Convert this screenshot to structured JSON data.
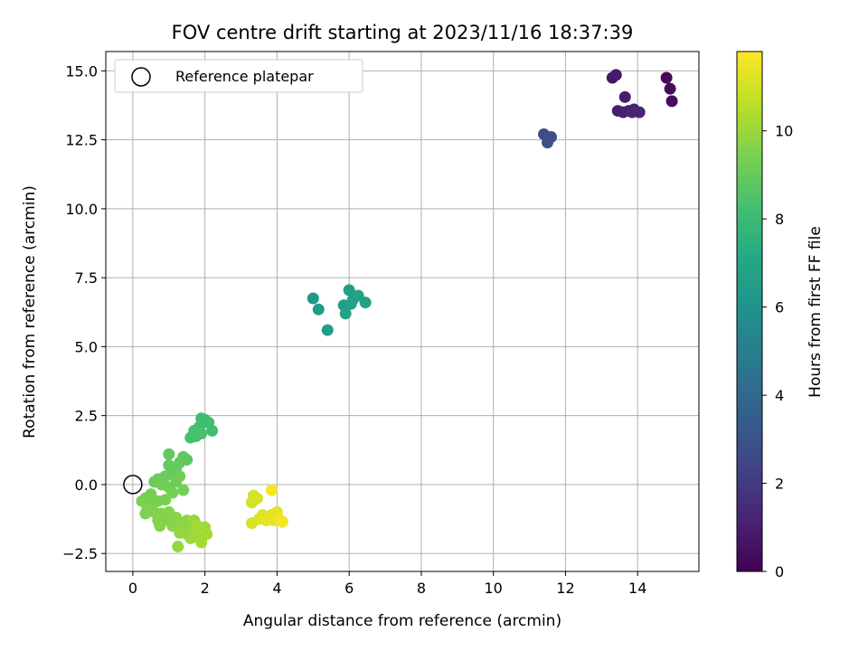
{
  "chart_data": {
    "type": "scatter",
    "title": "FOV centre drift starting at 2023/11/16 18:37:39",
    "xlabel": "Angular distance from reference (arcmin)",
    "ylabel": "Rotation from reference (arcmin)",
    "xlim": [
      -0.75,
      15.7
    ],
    "ylim": [
      -3.15,
      15.7
    ],
    "xticks": [
      0,
      2,
      4,
      6,
      8,
      10,
      12,
      14
    ],
    "yticks": [
      -2.5,
      0.0,
      2.5,
      5.0,
      7.5,
      10.0,
      12.5,
      15.0
    ],
    "ytick_labels": [
      "−2.5",
      "0.0",
      "2.5",
      "5.0",
      "7.5",
      "10.0",
      "12.5",
      "15.0"
    ],
    "grid": true,
    "legend": {
      "placement": "upper-left",
      "entries": [
        "Reference platepar"
      ]
    },
    "reference_point": {
      "x": 0,
      "y": 0
    },
    "colorbar": {
      "label": "Hours from first FF file",
      "colormap": "viridis",
      "range": [
        0,
        11.8
      ],
      "ticks": [
        0,
        2,
        4,
        6,
        8,
        10
      ]
    },
    "points": [
      {
        "x": 14.8,
        "y": 14.75,
        "c": 0.2
      },
      {
        "x": 14.9,
        "y": 14.35,
        "c": 0.3
      },
      {
        "x": 14.95,
        "y": 13.9,
        "c": 0.4
      },
      {
        "x": 13.3,
        "y": 14.75,
        "c": 0.7
      },
      {
        "x": 13.4,
        "y": 14.85,
        "c": 0.8
      },
      {
        "x": 13.65,
        "y": 14.05,
        "c": 0.9
      },
      {
        "x": 13.45,
        "y": 13.55,
        "c": 1.0
      },
      {
        "x": 13.6,
        "y": 13.5,
        "c": 1.0
      },
      {
        "x": 13.75,
        "y": 13.55,
        "c": 1.1
      },
      {
        "x": 13.9,
        "y": 13.6,
        "c": 1.1
      },
      {
        "x": 14.05,
        "y": 13.5,
        "c": 1.2
      },
      {
        "x": 13.85,
        "y": 13.5,
        "c": 1.2
      },
      {
        "x": 11.4,
        "y": 12.7,
        "c": 2.7
      },
      {
        "x": 11.6,
        "y": 12.6,
        "c": 2.8
      },
      {
        "x": 11.5,
        "y": 12.4,
        "c": 2.9
      },
      {
        "x": 5.0,
        "y": 6.75,
        "c": 6.3
      },
      {
        "x": 5.15,
        "y": 6.35,
        "c": 6.4
      },
      {
        "x": 5.4,
        "y": 5.6,
        "c": 6.5
      },
      {
        "x": 5.85,
        "y": 6.5,
        "c": 6.5
      },
      {
        "x": 6.0,
        "y": 7.05,
        "c": 6.6
      },
      {
        "x": 6.1,
        "y": 6.7,
        "c": 6.6
      },
      {
        "x": 6.25,
        "y": 6.85,
        "c": 6.7
      },
      {
        "x": 6.45,
        "y": 6.6,
        "c": 6.7
      },
      {
        "x": 5.9,
        "y": 6.2,
        "c": 6.8
      },
      {
        "x": 6.05,
        "y": 6.55,
        "c": 6.8
      },
      {
        "x": 1.9,
        "y": 2.4,
        "c": 8.1
      },
      {
        "x": 2.0,
        "y": 2.35,
        "c": 8.1
      },
      {
        "x": 2.1,
        "y": 2.25,
        "c": 8.2
      },
      {
        "x": 2.2,
        "y": 1.95,
        "c": 8.2
      },
      {
        "x": 1.85,
        "y": 2.1,
        "c": 8.2
      },
      {
        "x": 1.7,
        "y": 1.95,
        "c": 8.3
      },
      {
        "x": 1.6,
        "y": 1.7,
        "c": 8.3
      },
      {
        "x": 1.75,
        "y": 1.75,
        "c": 8.3
      },
      {
        "x": 1.9,
        "y": 1.85,
        "c": 8.4
      },
      {
        "x": 1.5,
        "y": 0.9,
        "c": 8.8
      },
      {
        "x": 1.4,
        "y": 1.0,
        "c": 8.8
      },
      {
        "x": 1.3,
        "y": 0.8,
        "c": 8.9
      },
      {
        "x": 1.0,
        "y": 1.1,
        "c": 8.9
      },
      {
        "x": 1.2,
        "y": 0.6,
        "c": 9.0
      },
      {
        "x": 1.1,
        "y": 0.4,
        "c": 9.0
      },
      {
        "x": 1.0,
        "y": 0.7,
        "c": 9.0
      },
      {
        "x": 0.9,
        "y": 0.3,
        "c": 9.1
      },
      {
        "x": 0.7,
        "y": 0.2,
        "c": 9.1
      },
      {
        "x": 0.6,
        "y": 0.1,
        "c": 9.1
      },
      {
        "x": 0.8,
        "y": 0.0,
        "c": 9.2
      },
      {
        "x": 1.0,
        "y": -0.1,
        "c": 9.2
      },
      {
        "x": 1.2,
        "y": 0.1,
        "c": 9.2
      },
      {
        "x": 1.3,
        "y": 0.3,
        "c": 9.2
      },
      {
        "x": 1.4,
        "y": -0.2,
        "c": 9.3
      },
      {
        "x": 1.1,
        "y": -0.3,
        "c": 9.3
      },
      {
        "x": 0.5,
        "y": -0.35,
        "c": 9.3
      },
      {
        "x": 0.35,
        "y": -0.5,
        "c": 9.3
      },
      {
        "x": 0.25,
        "y": -0.6,
        "c": 9.4
      },
      {
        "x": 0.5,
        "y": -0.7,
        "c": 9.4
      },
      {
        "x": 0.7,
        "y": -0.6,
        "c": 9.4
      },
      {
        "x": 0.9,
        "y": -0.55,
        "c": 9.4
      },
      {
        "x": 0.4,
        "y": -0.9,
        "c": 9.5
      },
      {
        "x": 0.6,
        "y": -1.0,
        "c": 9.5
      },
      {
        "x": 0.35,
        "y": -1.05,
        "c": 9.5
      },
      {
        "x": 0.8,
        "y": -1.05,
        "c": 9.5
      },
      {
        "x": 1.0,
        "y": -1.0,
        "c": 9.6
      },
      {
        "x": 0.7,
        "y": -1.3,
        "c": 9.6
      },
      {
        "x": 0.75,
        "y": -1.5,
        "c": 9.6
      },
      {
        "x": 1.0,
        "y": -1.3,
        "c": 9.6
      },
      {
        "x": 1.2,
        "y": -1.2,
        "c": 9.7
      },
      {
        "x": 1.1,
        "y": -1.5,
        "c": 9.7
      },
      {
        "x": 1.3,
        "y": -1.4,
        "c": 9.7
      },
      {
        "x": 1.4,
        "y": -1.6,
        "c": 9.8
      },
      {
        "x": 1.5,
        "y": -1.3,
        "c": 9.8
      },
      {
        "x": 1.6,
        "y": -1.5,
        "c": 9.8
      },
      {
        "x": 1.7,
        "y": -1.3,
        "c": 9.9
      },
      {
        "x": 1.3,
        "y": -1.75,
        "c": 9.9
      },
      {
        "x": 1.5,
        "y": -1.8,
        "c": 9.9
      },
      {
        "x": 1.7,
        "y": -1.7,
        "c": 10.0
      },
      {
        "x": 1.6,
        "y": -1.95,
        "c": 10.0
      },
      {
        "x": 1.8,
        "y": -1.9,
        "c": 10.1
      },
      {
        "x": 2.0,
        "y": -1.55,
        "c": 10.1
      },
      {
        "x": 2.05,
        "y": -1.8,
        "c": 10.2
      },
      {
        "x": 1.9,
        "y": -2.1,
        "c": 10.2
      },
      {
        "x": 1.8,
        "y": -1.5,
        "c": 10.2
      },
      {
        "x": 1.25,
        "y": -2.25,
        "c": 9.9
      },
      {
        "x": 3.3,
        "y": -0.65,
        "c": 11.0
      },
      {
        "x": 3.35,
        "y": -0.4,
        "c": 11.0
      },
      {
        "x": 3.45,
        "y": -0.5,
        "c": 11.1
      },
      {
        "x": 3.3,
        "y": -1.4,
        "c": 11.1
      },
      {
        "x": 3.5,
        "y": -1.25,
        "c": 11.2
      },
      {
        "x": 3.6,
        "y": -1.1,
        "c": 11.2
      },
      {
        "x": 3.7,
        "y": -1.3,
        "c": 11.3
      },
      {
        "x": 3.85,
        "y": -1.1,
        "c": 11.3
      },
      {
        "x": 3.9,
        "y": -1.3,
        "c": 11.4
      },
      {
        "x": 4.0,
        "y": -1.0,
        "c": 11.4
      },
      {
        "x": 4.05,
        "y": -1.25,
        "c": 11.5
      },
      {
        "x": 4.15,
        "y": -1.35,
        "c": 11.6
      },
      {
        "x": 3.85,
        "y": -0.2,
        "c": 11.7
      }
    ]
  }
}
